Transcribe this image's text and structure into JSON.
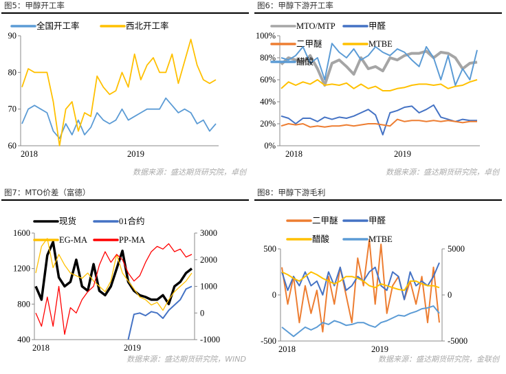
{
  "panels": [
    {
      "title": "图5：甲醇开工率",
      "source": "数据来源：盛达期货研究院，卓创"
    },
    {
      "title": "图6：甲醇下游开工率",
      "source": "数据来源：盛达期货研究院，卓创"
    },
    {
      "title": "图7：MTO价差（富德）",
      "source": "数据来源：盛达期货研究院，WIND"
    },
    {
      "title": "图8：甲醇下游毛利",
      "source": "数据来源：盛达期货研究院，金联创"
    }
  ],
  "chart_data": [
    {
      "type": "line",
      "xlim": [
        2018.0,
        2019.8
      ],
      "x_ticks": [
        "2018",
        "2019"
      ],
      "ylim": [
        60,
        90
      ],
      "y_ticks": [
        "60",
        "70",
        "80",
        "90"
      ],
      "legend": "top",
      "series": [
        {
          "name": "全国开工率",
          "color": "#5b9bd5",
          "axis": "left",
          "values": [
            66,
            70,
            71,
            70,
            69,
            64,
            62,
            66,
            63,
            67,
            63,
            65,
            69,
            67,
            66,
            67,
            70,
            67,
            68,
            69,
            70,
            70,
            70,
            73,
            71,
            69,
            70,
            69,
            66,
            67,
            64,
            66
          ]
        },
        {
          "name": "西北开工率",
          "color": "#ffc000",
          "axis": "left",
          "values": [
            76,
            81,
            80,
            80,
            80,
            72,
            60,
            70,
            72,
            64,
            69,
            68,
            79,
            76,
            74,
            75,
            80,
            76,
            85,
            78,
            82,
            84,
            80,
            80,
            85,
            77,
            83,
            89,
            82,
            78,
            77,
            78
          ]
        }
      ]
    },
    {
      "type": "line",
      "xlim": [
        2018.0,
        2019.8
      ],
      "x_ticks": [
        "2018",
        "2019"
      ],
      "ylim": [
        0,
        100
      ],
      "y_ticks": [
        "0%",
        "20%",
        "40%",
        "60%",
        "80%",
        "100%"
      ],
      "legend": "top-left",
      "series": [
        {
          "name": "MTO/MTP",
          "color": "#a5a5a5",
          "axis": "left",
          "values": [
            74,
            80,
            78,
            76,
            82,
            70,
            55,
            75,
            78,
            72,
            65,
            80,
            70,
            72,
            68,
            80,
            78,
            82,
            84,
            84,
            86,
            80,
            85,
            84,
            80,
            70,
            75,
            76
          ]
        },
        {
          "name": "甲醛",
          "color": "#4472c4",
          "axis": "left",
          "values": [
            27,
            25,
            20,
            25,
            25,
            22,
            26,
            24,
            26,
            25,
            27,
            30,
            33,
            28,
            10,
            30,
            32,
            35,
            36,
            30,
            33,
            37,
            26,
            24,
            22,
            24,
            23,
            23
          ]
        },
        {
          "name": "二甲醚",
          "color": "#ed7d31",
          "axis": "left",
          "values": [
            18,
            20,
            19,
            20,
            17,
            18,
            17,
            18,
            18,
            19,
            18,
            19,
            20,
            20,
            19,
            18,
            24,
            22,
            23,
            23,
            22,
            23,
            22,
            23,
            22,
            21,
            22,
            22
          ]
        },
        {
          "name": "MTBE",
          "color": "#ffc000",
          "axis": "left",
          "values": [
            52,
            58,
            55,
            58,
            56,
            60,
            55,
            56,
            55,
            57,
            52,
            56,
            52,
            54,
            50,
            50,
            52,
            53,
            55,
            56,
            56,
            55,
            56,
            52,
            54,
            55,
            58,
            60
          ]
        },
        {
          "name": "醋酸",
          "color": "#5b9bd5",
          "axis": "left",
          "values": [
            80,
            78,
            82,
            90,
            75,
            80,
            60,
            93,
            85,
            80,
            88,
            78,
            82,
            90,
            85,
            82,
            88,
            85,
            78,
            72,
            90,
            80,
            60,
            82,
            55,
            70,
            60,
            87
          ]
        }
      ]
    },
    {
      "type": "line",
      "xlim": [
        2018.0,
        2019.75
      ],
      "x_ticks": [
        "2018",
        "2019"
      ],
      "ylim": [
        400,
        1600
      ],
      "y_ticks": [
        "400",
        "800",
        "1200",
        "1600"
      ],
      "y2lim": [
        -1000,
        3000
      ],
      "y2_ticks": [
        "-1000",
        "0",
        "1000",
        "2000",
        "3000"
      ],
      "legend": "top",
      "series": [
        {
          "name": "现货",
          "color": "#000000",
          "axis": "left",
          "values": [
            1000,
            850,
            1350,
            1500,
            1100,
            1000,
            1050,
            1300,
            1000,
            950,
            1250,
            950,
            900,
            1000,
            1200,
            1400,
            1050,
            950,
            900,
            880,
            850,
            850,
            900,
            800,
            1000,
            1050,
            1150,
            1200
          ]
        },
        {
          "name": "01合约",
          "color": "#4472c4",
          "axis": "right",
          "values": [
            null,
            null,
            null,
            null,
            null,
            null,
            null,
            null,
            null,
            null,
            null,
            null,
            null,
            null,
            null,
            null,
            -1000,
            -50,
            0,
            -100,
            50,
            0,
            -200,
            100,
            300,
            500,
            900,
            1000
          ]
        },
        {
          "name": "EG-MA",
          "color": "#ffc000",
          "axis": "right",
          "values": [
            1500,
            2500,
            2800,
            1700,
            2200,
            1800,
            1500,
            1400,
            1300,
            1500,
            1200,
            1000,
            800,
            1200,
            2200,
            1500,
            1200,
            900,
            600,
            500,
            300,
            400,
            100,
            500,
            800,
            1000,
            1200,
            1500
          ]
        },
        {
          "name": "PP-MA",
          "color": "#ff0000",
          "axis": "right",
          "values": [
            0,
            -500,
            600,
            -500,
            1000,
            -800,
            200,
            0,
            500,
            800,
            1000,
            1800,
            2300,
            1900,
            2200,
            2000,
            1500,
            1200,
            1400,
            1900,
            2300,
            2500,
            2400,
            2600,
            2300,
            2400,
            2100,
            2200
          ]
        }
      ]
    },
    {
      "type": "line",
      "xlim": [
        2018.0,
        2019.75
      ],
      "x_ticks": [
        "2018",
        "2019"
      ],
      "ylim": [
        -500,
        500
      ],
      "y_ticks": [
        "-500",
        "0",
        "500"
      ],
      "y2lim": [
        -5000,
        5000
      ],
      "y2_ticks": [
        "-5000",
        "0",
        "5000"
      ],
      "legend": "top",
      "series": [
        {
          "name": "二甲醚",
          "color": "#ed7d31",
          "axis": "left",
          "values": [
            300,
            -100,
            200,
            -300,
            100,
            -200,
            50,
            -400,
            200,
            -100,
            300,
            0,
            -300,
            400,
            100,
            600,
            -100,
            550,
            -200,
            100,
            200,
            -50,
            150,
            -100,
            200,
            -300,
            300,
            -300
          ]
        },
        {
          "name": "甲醛",
          "color": "#4472c4",
          "axis": "left",
          "values": [
            250,
            50,
            200,
            100,
            250,
            100,
            150,
            0,
            250,
            100,
            300,
            50,
            100,
            200,
            150,
            250,
            300,
            100,
            50,
            250,
            200,
            -50,
            250,
            100,
            150,
            100,
            200,
            350
          ]
        },
        {
          "name": "醋酸",
          "color": "#ffc000",
          "axis": "right",
          "values": [
            2500,
            2200,
            1800,
            1500,
            2000,
            2500,
            2200,
            1800,
            1500,
            1200,
            1500,
            2000,
            2000,
            1800,
            1500,
            1000,
            800,
            1200,
            1000,
            800,
            600,
            500,
            1500,
            1500,
            1200,
            1000,
            1000,
            800
          ]
        },
        {
          "name": "MTBE",
          "color": "#5b9bd5",
          "axis": "right",
          "values": [
            -3500,
            -4000,
            -4500,
            -4000,
            -3500,
            -3800,
            -3500,
            -3000,
            -3200,
            -2800,
            -3000,
            -3300,
            -3200,
            -3000,
            -3000,
            -3300,
            -3500,
            -3000,
            -2800,
            -2500,
            -2200,
            -2300,
            -2000,
            -1800,
            -1500,
            -1400,
            -1200,
            -2000
          ]
        }
      ]
    }
  ]
}
